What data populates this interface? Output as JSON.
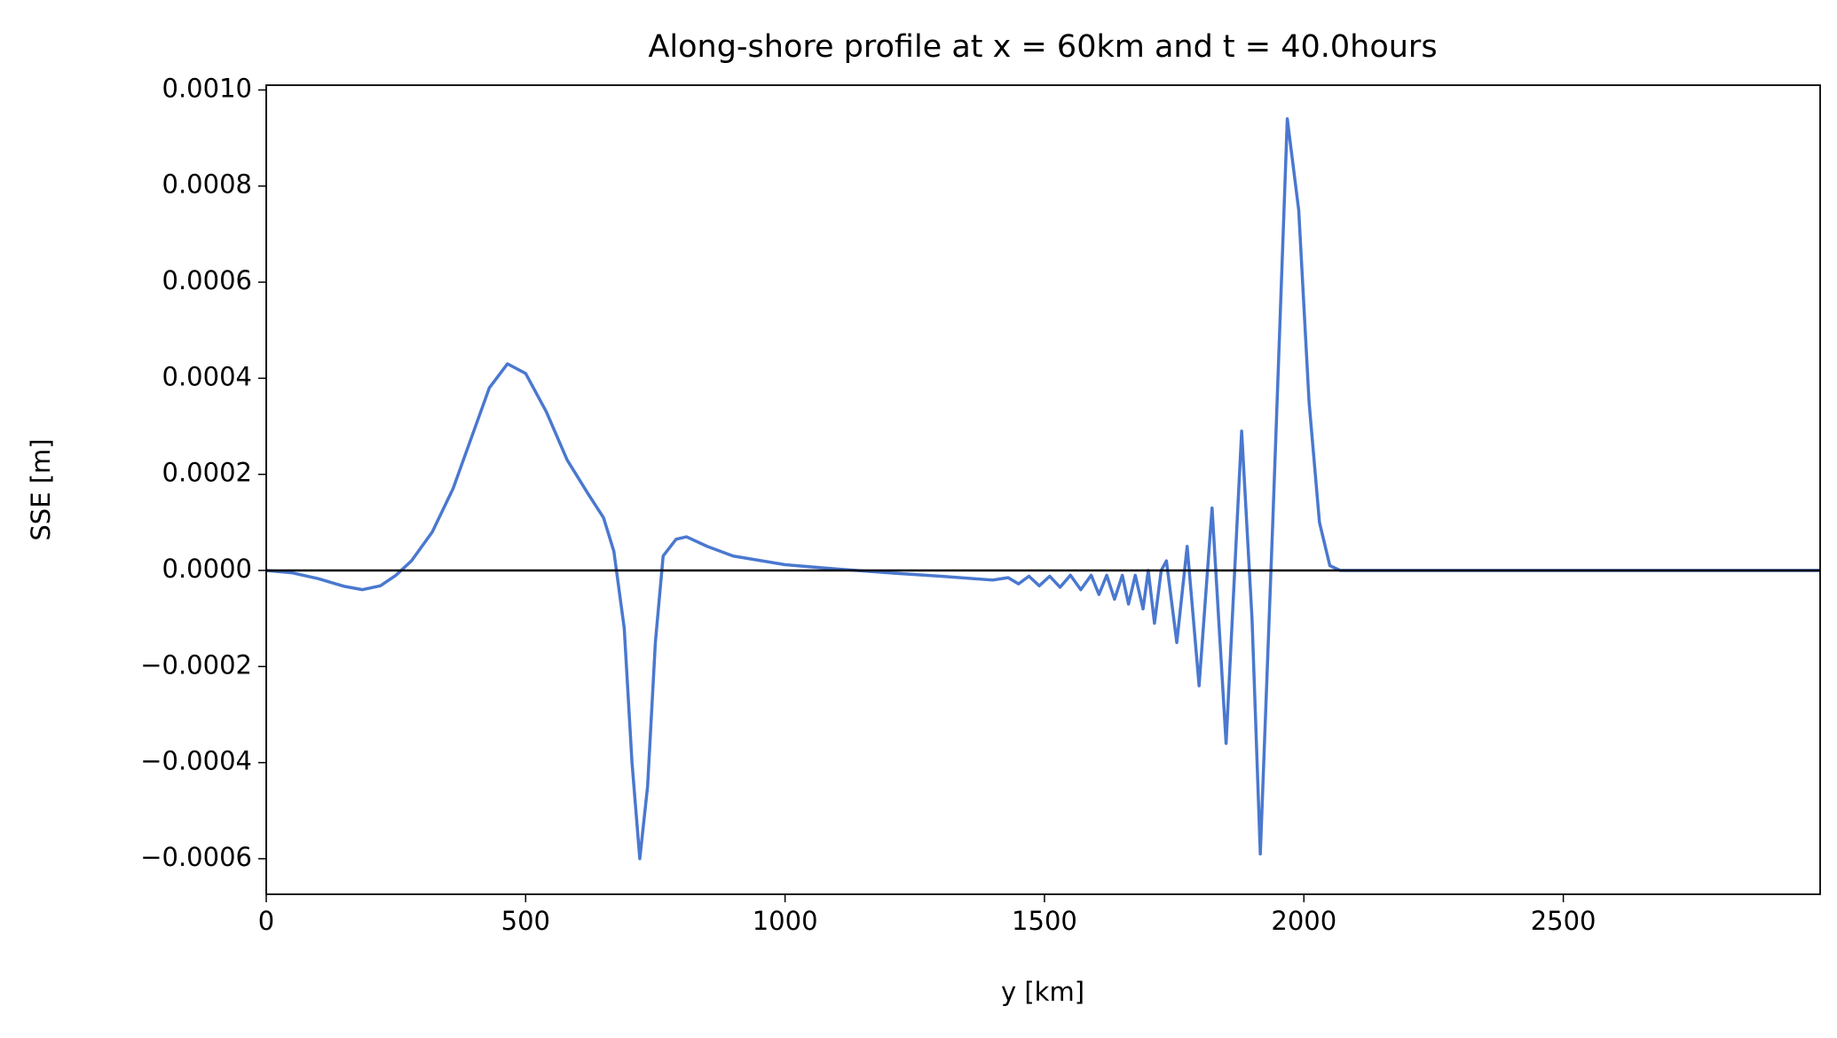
{
  "chart_data": {
    "type": "line",
    "title": "Along-shore profile at x = 60km and t = 40.0hours",
    "x_label": "y [km]",
    "y_label": "SSE [m]",
    "x": [
      0,
      50,
      100,
      150,
      185,
      220,
      250,
      280,
      320,
      360,
      400,
      430,
      465,
      500,
      540,
      580,
      620,
      650,
      670,
      690,
      705,
      720,
      735,
      750,
      765,
      790,
      810,
      850,
      900,
      1000,
      1100,
      1200,
      1300,
      1400,
      1430,
      1450,
      1470,
      1490,
      1510,
      1530,
      1550,
      1570,
      1590,
      1605,
      1620,
      1635,
      1650,
      1662,
      1675,
      1690,
      1700,
      1712,
      1725,
      1735,
      1755,
      1775,
      1798,
      1823,
      1850,
      1880,
      1900,
      1916,
      1940,
      1968,
      1990,
      2010,
      2030,
      2050,
      2070,
      2100,
      2500,
      2995
    ],
    "series": [
      {
        "color": "#4a78cf",
        "values": [
          0,
          -5e-06,
          -1.7e-05,
          -3.3e-05,
          -4e-05,
          -3.2e-05,
          -1e-05,
          2e-05,
          8e-05,
          0.00017,
          0.00029,
          0.00038,
          0.00043,
          0.00041,
          0.00033,
          0.00023,
          0.00016,
          0.00011,
          4e-05,
          -0.00012,
          -0.0004,
          -0.0006,
          -0.00045,
          -0.00015,
          3e-05,
          6.5e-05,
          7e-05,
          5e-05,
          3e-05,
          1.2e-05,
          3e-06,
          -5e-06,
          -1.2e-05,
          -2e-05,
          -1.5e-05,
          -2.8e-05,
          -1.2e-05,
          -3.2e-05,
          -1.2e-05,
          -3.5e-05,
          -1e-05,
          -4e-05,
          -1e-05,
          -5e-05,
          -1e-05,
          -6e-05,
          -1e-05,
          -7e-05,
          -1e-05,
          -8e-05,
          0,
          -0.00011,
          0,
          2e-05,
          -0.00015,
          5e-05,
          -0.00024,
          0.00013,
          -0.00036,
          0.00029,
          -0.0001,
          -0.00059,
          0.0001,
          0.00094,
          0.00075,
          0.00035,
          0.0001,
          1e-05,
          0,
          0,
          0,
          0
        ]
      }
    ],
    "hline": 0,
    "xlim": [
      0,
      2995
    ],
    "ylim": [
      -0.000674,
      0.00101
    ],
    "xticks": [
      0,
      500,
      1000,
      1500,
      2000,
      2500
    ],
    "yticks": [
      {
        "value": -0.0006,
        "label": "−0.0006"
      },
      {
        "value": -0.0004,
        "label": "−0.0004"
      },
      {
        "value": -0.0002,
        "label": "−0.0002"
      },
      {
        "value": 0,
        "label": "0.0000"
      },
      {
        "value": 0.0002,
        "label": "0.0002"
      },
      {
        "value": 0.0004,
        "label": "0.0004"
      },
      {
        "value": 0.0006,
        "label": "0.0006"
      },
      {
        "value": 0.0008,
        "label": "0.0008"
      },
      {
        "value": 0.001,
        "label": "0.0010"
      }
    ]
  }
}
